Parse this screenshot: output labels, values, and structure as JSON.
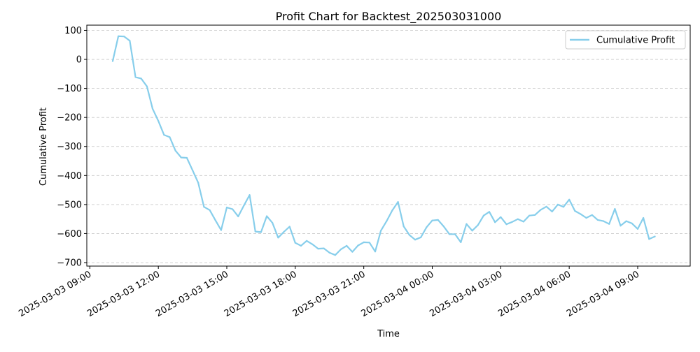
{
  "chart_data": {
    "type": "line",
    "title": "Profit Chart for Backtest_202503031000",
    "xlabel": "Time",
    "ylabel": "Cumulative Profit",
    "x_axis_type": "datetime",
    "xlim": [
      "2025-03-03 08:52",
      "2025-03-04 11:18"
    ],
    "ylim": [
      -712,
      118
    ],
    "xticks": [
      {
        "t": "2025-03-03 09:00",
        "label": "2025-03-03 09:00"
      },
      {
        "t": "2025-03-03 12:00",
        "label": "2025-03-03 12:00"
      },
      {
        "t": "2025-03-03 15:00",
        "label": "2025-03-03 15:00"
      },
      {
        "t": "2025-03-03 18:00",
        "label": "2025-03-03 18:00"
      },
      {
        "t": "2025-03-03 21:00",
        "label": "2025-03-03 21:00"
      },
      {
        "t": "2025-03-04 00:00",
        "label": "2025-03-04 00:00"
      },
      {
        "t": "2025-03-04 03:00",
        "label": "2025-03-04 03:00"
      },
      {
        "t": "2025-03-04 06:00",
        "label": "2025-03-04 06:00"
      },
      {
        "t": "2025-03-04 09:00",
        "label": "2025-03-04 09:00"
      }
    ],
    "yticks": [
      {
        "v": 100,
        "label": "100"
      },
      {
        "v": 0,
        "label": "0"
      },
      {
        "v": -100,
        "label": "−100"
      },
      {
        "v": -200,
        "label": "−200"
      },
      {
        "v": -300,
        "label": "−300"
      },
      {
        "v": -400,
        "label": "−400"
      },
      {
        "v": -500,
        "label": "−500"
      },
      {
        "v": -600,
        "label": "−600"
      },
      {
        "v": -700,
        "label": "−700"
      }
    ],
    "grid": {
      "y": true,
      "x": false,
      "style": "dashed"
    },
    "legend": {
      "position": "top-right"
    },
    "series": [
      {
        "name": "Cumulative Profit",
        "color": "#87CEEB",
        "points": [
          [
            "2025-03-03 10:00",
            -6
          ],
          [
            "2025-03-03 10:15",
            80
          ],
          [
            "2025-03-03 10:30",
            79
          ],
          [
            "2025-03-03 10:45",
            64
          ],
          [
            "2025-03-03 11:00",
            -61
          ],
          [
            "2025-03-03 11:15",
            -66
          ],
          [
            "2025-03-03 11:30",
            -93
          ],
          [
            "2025-03-03 11:45",
            -170
          ],
          [
            "2025-03-03 12:00",
            -212
          ],
          [
            "2025-03-03 12:15",
            -260
          ],
          [
            "2025-03-03 12:30",
            -268
          ],
          [
            "2025-03-03 12:45",
            -314
          ],
          [
            "2025-03-03 13:00",
            -338
          ],
          [
            "2025-03-03 13:15",
            -339
          ],
          [
            "2025-03-03 13:30",
            -382
          ],
          [
            "2025-03-03 13:45",
            -425
          ],
          [
            "2025-03-03 14:00",
            -508
          ],
          [
            "2025-03-03 14:15",
            -519
          ],
          [
            "2025-03-03 14:30",
            -554
          ],
          [
            "2025-03-03 14:45",
            -588
          ],
          [
            "2025-03-03 15:00",
            -510
          ],
          [
            "2025-03-03 15:15",
            -516
          ],
          [
            "2025-03-03 15:30",
            -541
          ],
          [
            "2025-03-03 15:45",
            -503
          ],
          [
            "2025-03-03 16:00",
            -467
          ],
          [
            "2025-03-03 16:15",
            -593
          ],
          [
            "2025-03-03 16:30",
            -595
          ],
          [
            "2025-03-03 16:45",
            -540
          ],
          [
            "2025-03-03 17:00",
            -563
          ],
          [
            "2025-03-03 17:15",
            -614
          ],
          [
            "2025-03-03 17:30",
            -594
          ],
          [
            "2025-03-03 17:45",
            -576
          ],
          [
            "2025-03-03 18:00",
            -632
          ],
          [
            "2025-03-03 18:15",
            -642
          ],
          [
            "2025-03-03 18:30",
            -625
          ],
          [
            "2025-03-03 18:45",
            -637
          ],
          [
            "2025-03-03 19:00",
            -652
          ],
          [
            "2025-03-03 19:15",
            -651
          ],
          [
            "2025-03-03 19:30",
            -666
          ],
          [
            "2025-03-03 19:45",
            -674
          ],
          [
            "2025-03-03 20:00",
            -654
          ],
          [
            "2025-03-03 20:15",
            -642
          ],
          [
            "2025-03-03 20:30",
            -663
          ],
          [
            "2025-03-03 20:45",
            -641
          ],
          [
            "2025-03-03 21:00",
            -630
          ],
          [
            "2025-03-03 21:15",
            -631
          ],
          [
            "2025-03-03 21:30",
            -662
          ],
          [
            "2025-03-03 21:45",
            -590
          ],
          [
            "2025-03-03 22:00",
            -557
          ],
          [
            "2025-03-03 22:15",
            -520
          ],
          [
            "2025-03-03 22:30",
            -491
          ],
          [
            "2025-03-03 22:45",
            -575
          ],
          [
            "2025-03-03 23:00",
            -605
          ],
          [
            "2025-03-03 23:15",
            -621
          ],
          [
            "2025-03-03 23:30",
            -613
          ],
          [
            "2025-03-03 23:45",
            -578
          ],
          [
            "2025-03-04 00:00",
            -555
          ],
          [
            "2025-03-04 00:15",
            -553
          ],
          [
            "2025-03-04 00:30",
            -575
          ],
          [
            "2025-03-04 00:45",
            -602
          ],
          [
            "2025-03-04 01:00",
            -602
          ],
          [
            "2025-03-04 01:15",
            -630
          ],
          [
            "2025-03-04 01:30",
            -567
          ],
          [
            "2025-03-04 01:45",
            -590
          ],
          [
            "2025-03-04 02:00",
            -571
          ],
          [
            "2025-03-04 02:15",
            -538
          ],
          [
            "2025-03-04 02:30",
            -525
          ],
          [
            "2025-03-04 02:45",
            -561
          ],
          [
            "2025-03-04 03:00",
            -543
          ],
          [
            "2025-03-04 03:15",
            -568
          ],
          [
            "2025-03-04 03:30",
            -560
          ],
          [
            "2025-03-04 03:45",
            -550
          ],
          [
            "2025-03-04 04:00",
            -559
          ],
          [
            "2025-03-04 04:15",
            -538
          ],
          [
            "2025-03-04 04:30",
            -536
          ],
          [
            "2025-03-04 04:45",
            -518
          ],
          [
            "2025-03-04 05:00",
            -507
          ],
          [
            "2025-03-04 05:15",
            -524
          ],
          [
            "2025-03-04 05:30",
            -500
          ],
          [
            "2025-03-04 05:45",
            -508
          ],
          [
            "2025-03-04 06:00",
            -483
          ],
          [
            "2025-03-04 06:15",
            -522
          ],
          [
            "2025-03-04 06:30",
            -533
          ],
          [
            "2025-03-04 06:45",
            -546
          ],
          [
            "2025-03-04 07:00",
            -536
          ],
          [
            "2025-03-04 07:15",
            -553
          ],
          [
            "2025-03-04 07:30",
            -557
          ],
          [
            "2025-03-04 07:45",
            -567
          ],
          [
            "2025-03-04 08:00",
            -515
          ],
          [
            "2025-03-04 08:15",
            -573
          ],
          [
            "2025-03-04 08:30",
            -557
          ],
          [
            "2025-03-04 08:45",
            -565
          ],
          [
            "2025-03-04 09:00",
            -584
          ],
          [
            "2025-03-04 09:15",
            -546
          ],
          [
            "2025-03-04 09:30",
            -619
          ],
          [
            "2025-03-04 09:45",
            -610
          ]
        ]
      }
    ]
  }
}
